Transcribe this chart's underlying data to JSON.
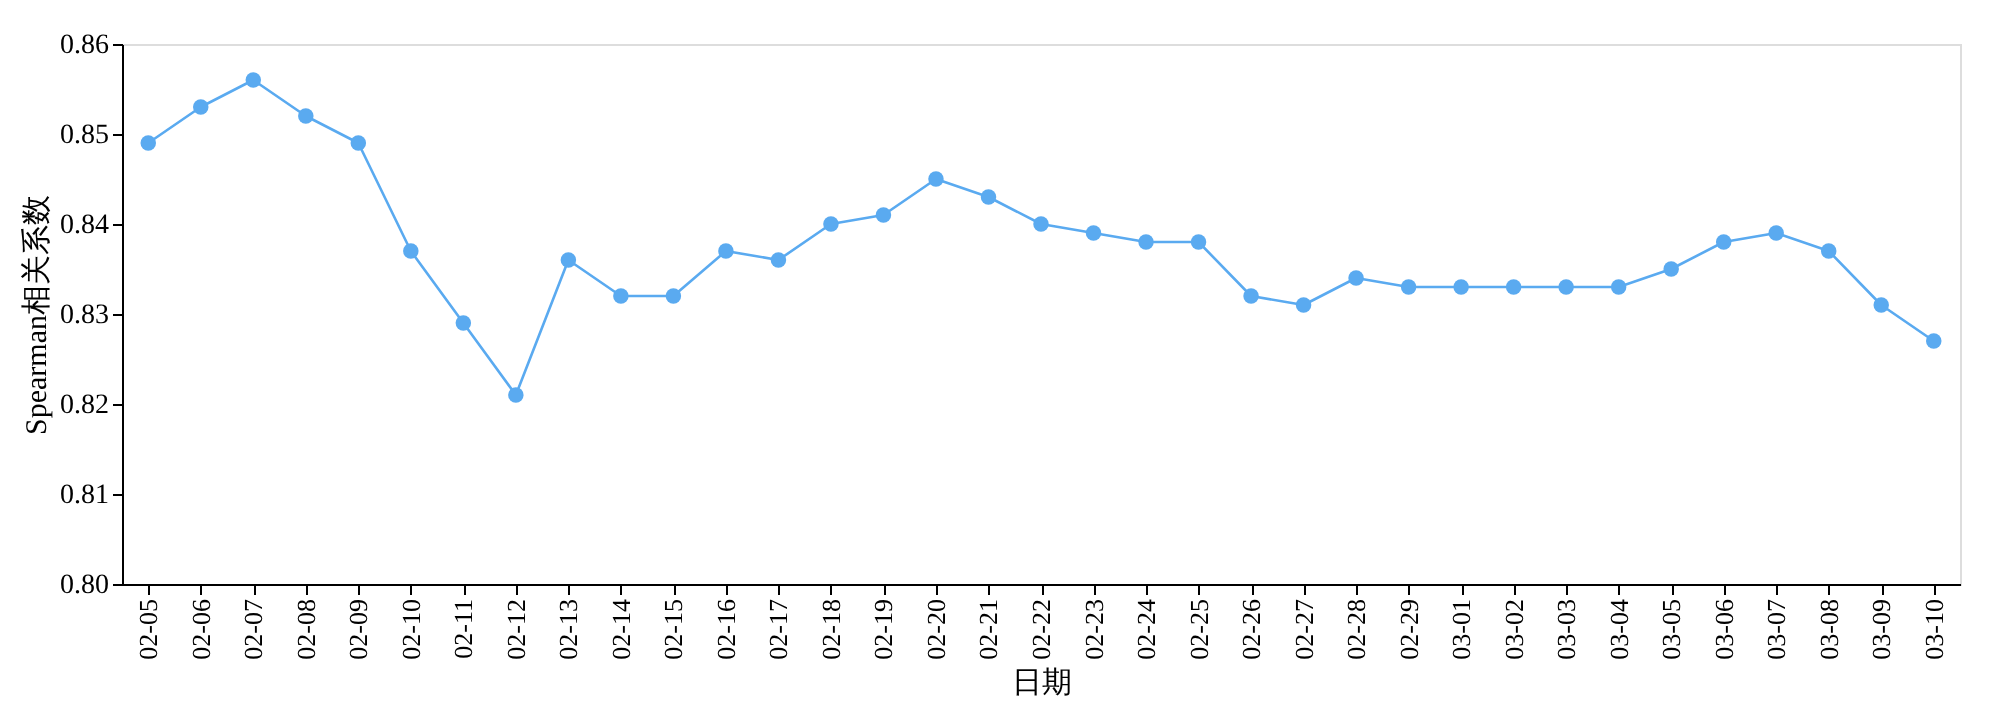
{
  "chart_data": {
    "type": "line",
    "xlabel": "日期",
    "ylabel": "Spearman相关系数",
    "categories": [
      "02-05",
      "02-06",
      "02-07",
      "02-08",
      "02-09",
      "02-10",
      "02-11",
      "02-12",
      "02-13",
      "02-14",
      "02-15",
      "02-16",
      "02-17",
      "02-18",
      "02-19",
      "02-20",
      "02-21",
      "02-22",
      "02-23",
      "02-24",
      "02-25",
      "02-26",
      "02-27",
      "02-28",
      "02-29",
      "03-01",
      "03-02",
      "03-03",
      "03-04",
      "03-05",
      "03-06",
      "03-07",
      "03-08",
      "03-09",
      "03-10"
    ],
    "series": [
      {
        "color": "#5aaaf0",
        "values": [
          0.849,
          0.853,
          0.856,
          0.852,
          0.849,
          0.837,
          0.829,
          0.821,
          0.836,
          0.832,
          0.832,
          0.837,
          0.836,
          0.84,
          0.841,
          0.845,
          0.843,
          0.84,
          0.839,
          0.838,
          0.838,
          0.832,
          0.831,
          0.834,
          0.833,
          0.833,
          0.833,
          0.833,
          0.833,
          0.835,
          0.838,
          0.839,
          0.837,
          0.831,
          0.827
        ]
      }
    ],
    "ylim": [
      0.8,
      0.86
    ],
    "yticks": [
      {
        "value": 0.8,
        "label": "0.80"
      },
      {
        "value": 0.81,
        "label": "0.81"
      },
      {
        "value": 0.82,
        "label": "0.82"
      },
      {
        "value": 0.83,
        "label": "0.83"
      },
      {
        "value": 0.84,
        "label": "0.84"
      },
      {
        "value": 0.85,
        "label": "0.85"
      },
      {
        "value": 0.86,
        "label": "0.86"
      }
    ],
    "grid": false,
    "legend": false,
    "marker": "circle",
    "line_style": "solid"
  }
}
